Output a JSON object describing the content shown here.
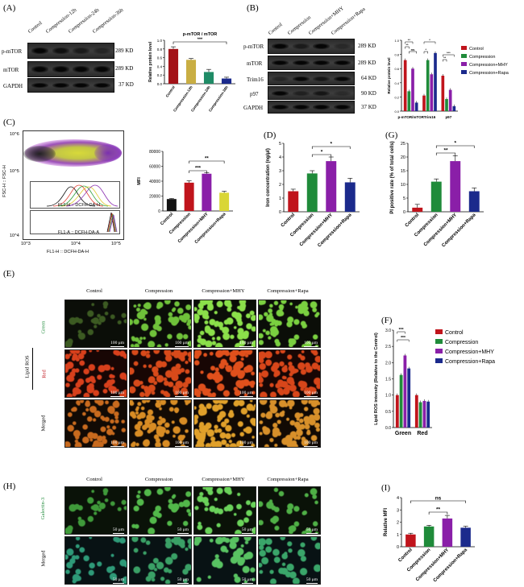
{
  "colors": {
    "control": "#c0141c",
    "compression": "#1f8b3a",
    "mhy": "#8a1fa8",
    "rapa": "#1b2a8c",
    "black_bar": "#111111",
    "yellow_bar": "#d9d636"
  },
  "panelA": {
    "letter": "(A)",
    "lanes": [
      "Control",
      "Compression-12h",
      "Compression-24h",
      "Compression-36h"
    ],
    "rows": [
      {
        "label": "p-mTOR",
        "kd": "289 KD"
      },
      {
        "label": "mTOR",
        "kd": "289 KD"
      },
      {
        "label": "GAPDH",
        "kd": "37 KD"
      }
    ],
    "chart_data": {
      "type": "bar",
      "title": "p-mTOR / mTOR",
      "ylabel": "Relative protein level",
      "categories": [
        "Control",
        "Compression-12h",
        "Compression-24h",
        "Compression-36h"
      ],
      "values": [
        0.8,
        0.55,
        0.27,
        0.12
      ],
      "errors": [
        0.05,
        0.03,
        0.06,
        0.03
      ],
      "ylim": [
        0,
        1.0
      ],
      "yticks": [
        "0.0",
        "0.2",
        "0.4",
        "0.6",
        "0.8",
        "1.0"
      ],
      "significance": "***"
    }
  },
  "panelB": {
    "letter": "(B)",
    "lanes": [
      "Control",
      "Compression",
      "Compression+MHY",
      "Compression+Rapa"
    ],
    "rows": [
      {
        "label": "p-mTOR",
        "kd": "289 KD"
      },
      {
        "label": "mTOR",
        "kd": "289 KD"
      },
      {
        "label": "Trim16",
        "kd": "64 KD"
      },
      {
        "label": "p97",
        "kd": "90 KD"
      },
      {
        "label": "GAPDH",
        "kd": "37 KD"
      }
    ],
    "legend": [
      "Control",
      "Compression",
      "Compression+MHY",
      "Compression+Rapa"
    ],
    "chart_data": {
      "type": "bar",
      "ylabel": "Relative protein level",
      "categories": [
        "p-mTOR/mTOR",
        "Trim16",
        "p97"
      ],
      "series": [
        {
          "name": "Control",
          "values": [
            0.72,
            0.22,
            0.5
          ]
        },
        {
          "name": "Compression",
          "values": [
            0.28,
            0.72,
            0.17
          ]
        },
        {
          "name": "Compression+MHY",
          "values": [
            0.6,
            0.52,
            0.3
          ]
        },
        {
          "name": "Compression+Rapa",
          "values": [
            0.12,
            0.82,
            0.07
          ]
        }
      ],
      "ylim": [
        0,
        1.0
      ],
      "yticks": [
        "0.0",
        "0.2",
        "0.4",
        "0.6",
        "0.8",
        "1.0"
      ],
      "significance": [
        "**",
        "**",
        "ns",
        "*",
        "*",
        "**",
        "***"
      ]
    }
  },
  "panelC": {
    "letter": "(C)",
    "flow": {
      "ylabel": "FSC-H :: FSC-H",
      "xlabel": "FL1-H :: DCFH-DA-H",
      "y_top_tick": "10^6",
      "y_mid_tick": "10^5",
      "y_low_tick": "10^4",
      "x_ticks": [
        "10^3",
        "10^4",
        "10^5"
      ],
      "hist1_label": "FL1-H :: DCFH-DA-H",
      "hist2_label": "FL1-A :: DCFH-DA-A"
    },
    "chart_data": {
      "type": "bar",
      "ylabel": "MFI",
      "categories": [
        "Control",
        "Compression",
        "Compression+MHY",
        "Compression+Rapa"
      ],
      "values": [
        16000,
        38000,
        50000,
        24500
      ],
      "errors": [
        800,
        2500,
        1500,
        2000
      ],
      "ylim": [
        0,
        80000
      ],
      "yticks": [
        "0",
        "20000",
        "40000",
        "60000",
        "80000"
      ],
      "significance": [
        "***",
        "**"
      ]
    }
  },
  "panelD": {
    "letter": "(D)",
    "chart_data": {
      "type": "bar",
      "ylabel": "Iron concentration (ng/μl)",
      "categories": [
        "Control",
        "Compression",
        "Compression+MHY",
        "Compression+Rapa"
      ],
      "values": [
        1.5,
        2.8,
        3.7,
        2.15
      ],
      "errors": [
        0.15,
        0.2,
        0.3,
        0.3
      ],
      "ylim": [
        0,
        5
      ],
      "yticks": [
        "0",
        "1",
        "2",
        "3",
        "4",
        "5"
      ],
      "significance": [
        "*",
        "*"
      ]
    }
  },
  "panelG": {
    "letter": "(G)",
    "chart_data": {
      "type": "bar",
      "ylabel": "PI positive rate (% of total cells)",
      "categories": [
        "Control",
        "Compression",
        "Compression+MHY",
        "Compression+Rapa"
      ],
      "values": [
        1.5,
        11,
        18.5,
        7.5
      ],
      "errors": [
        1.2,
        1.0,
        2.0,
        1.2
      ],
      "ylim": [
        0,
        25
      ],
      "yticks": [
        "0",
        "5",
        "10",
        "15",
        "20",
        "25"
      ],
      "significance": [
        "**",
        "*"
      ]
    }
  },
  "panelE": {
    "letter": "(E)",
    "columns": [
      "Control",
      "Compression",
      "Compression+MHY",
      "Compression+Rapa"
    ],
    "group_label": "Lipid ROS",
    "rows": [
      "Green",
      "Red",
      "Merged"
    ],
    "scale": "100 μm"
  },
  "panelF": {
    "letter": "(F)",
    "legend": [
      "Control",
      "Compression",
      "Compression+MHY",
      "Compression+Rapa"
    ],
    "chart_data": {
      "type": "bar",
      "ylabel": "Lipid ROS intensity (Relative to the Control)",
      "categories": [
        "Green",
        "Red"
      ],
      "series": [
        {
          "name": "Control",
          "values": [
            1.0,
            1.0
          ]
        },
        {
          "name": "Compression",
          "values": [
            1.62,
            0.78
          ]
        },
        {
          "name": "Compression+MHY",
          "values": [
            2.22,
            0.82
          ]
        },
        {
          "name": "Compression+Rapa",
          "values": [
            1.82,
            0.8
          ]
        }
      ],
      "ylim": [
        0,
        3.0
      ],
      "yticks": [
        "0.0",
        "0.5",
        "1.0",
        "1.5",
        "2.0",
        "2.5",
        "3.0"
      ],
      "significance": [
        "***",
        "***"
      ]
    }
  },
  "panelH": {
    "letter": "(H)",
    "columns": [
      "Control",
      "Compression",
      "Compression+MHY",
      "Compression+Rapa"
    ],
    "rows": [
      "Galectin-3",
      "Merged"
    ],
    "scale": "50 μm"
  },
  "panelI": {
    "letter": "(I)",
    "chart_data": {
      "type": "bar",
      "ylabel": "Relative MFI",
      "categories": [
        "Control",
        "Compression",
        "Compression+MHY",
        "Compression+Rapa"
      ],
      "values": [
        1.0,
        1.65,
        2.3,
        1.55
      ],
      "errors": [
        0.1,
        0.1,
        0.25,
        0.12
      ],
      "ylim": [
        0,
        4
      ],
      "yticks": [
        "0",
        "1",
        "2",
        "3",
        "4"
      ],
      "significance": [
        "**",
        "ns"
      ]
    }
  }
}
